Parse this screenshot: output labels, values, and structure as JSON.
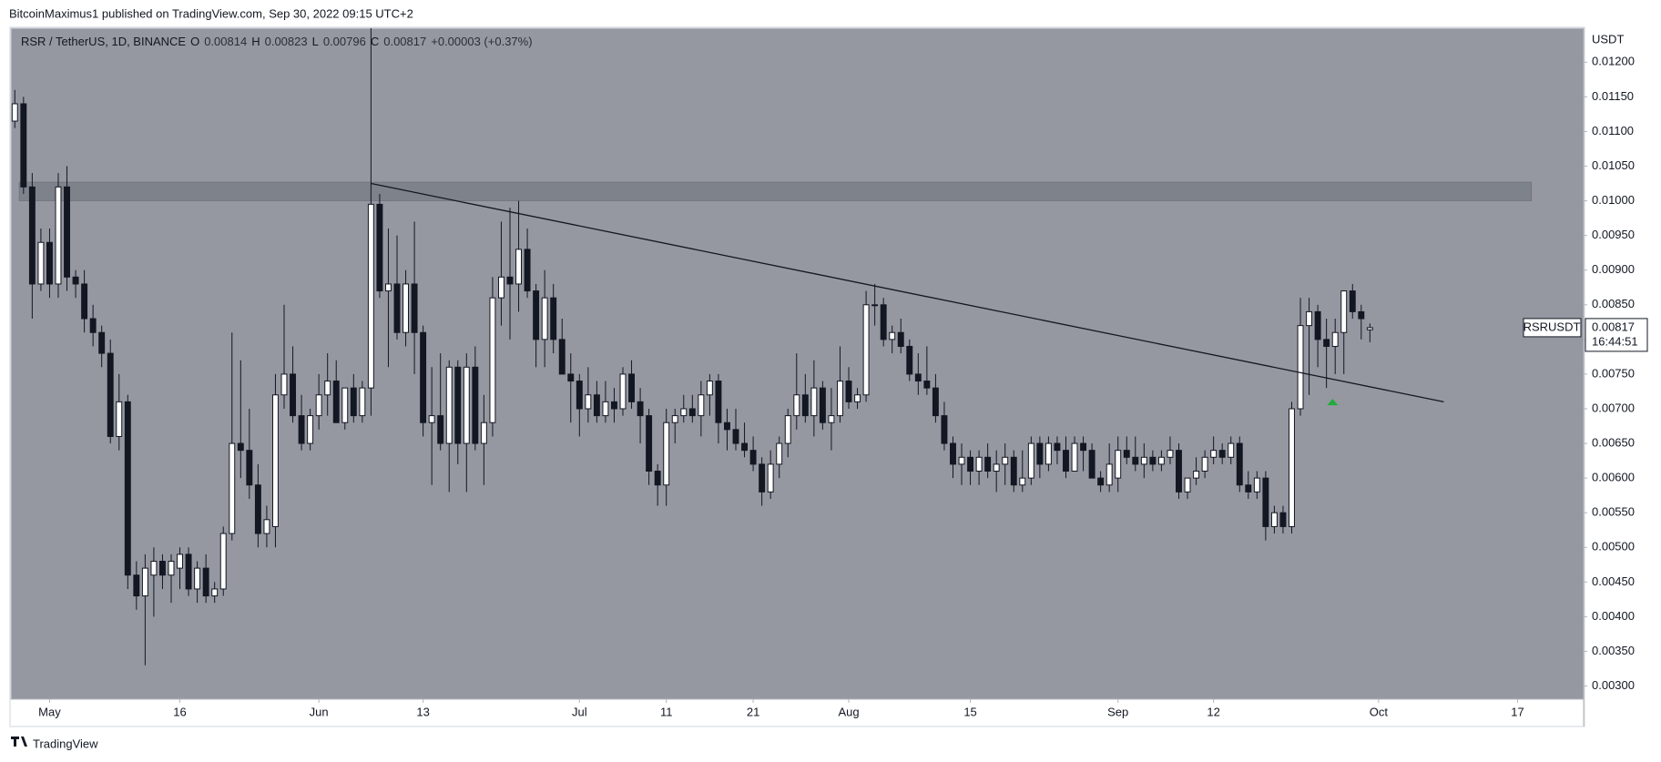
{
  "header": "BitcoinMaximus1 published on TradingView.com, Sep 30, 2022 09:15 UTC+2",
  "footer": "TradingView",
  "chart_data": {
    "type": "candlestick",
    "legend": {
      "title": "RSR / TetherUS, 1D, BINANCE",
      "fields": [
        {
          "key": "O",
          "value": 0.00814
        },
        {
          "key": "H",
          "value": 0.00823
        },
        {
          "key": "L",
          "value": 0.00796
        },
        {
          "key": "C",
          "value": 0.00817
        }
      ],
      "change": "+0.00003 (+0.37%)"
    },
    "y_axis_label": "USDT",
    "open": [
      0.01115,
      0.0114,
      0.0102,
      0.0088,
      0.0094,
      0.0088,
      0.0102,
      0.0089,
      0.0088,
      0.0083,
      0.0081,
      0.0078,
      0.0066,
      0.0071,
      0.0046,
      0.0043,
      0.0046,
      0.0048,
      0.0046,
      0.0047,
      0.0049,
      0.0044,
      0.0047,
      0.0043,
      0.0044,
      0.0052,
      0.0065,
      0.0064,
      0.0059,
      0.0052,
      0.0053,
      0.0072,
      0.0075,
      0.0069,
      0.0065,
      0.0069,
      0.0072,
      0.0074,
      0.0068,
      0.0073,
      0.0069,
      0.0073,
      0.00995,
      0.0087,
      0.0088,
      0.0081,
      0.0088,
      0.0081,
      0.0068,
      0.0069,
      0.0065,
      0.0076,
      0.0065,
      0.0076,
      0.0065,
      0.0068,
      0.0086,
      0.0089,
      0.0088,
      0.0093,
      0.0087,
      0.008,
      0.0086,
      0.008,
      0.0075,
      0.0074,
      0.007,
      0.0072,
      0.0069,
      0.0071,
      0.007,
      0.0075,
      0.0071,
      0.0069,
      0.0061,
      0.0059,
      0.0068,
      0.0069,
      0.007,
      0.0069,
      0.0072,
      0.0074,
      0.0068,
      0.0067,
      0.0065,
      0.0064,
      0.0062,
      0.0058,
      0.0062,
      0.0065,
      0.0069,
      0.0072,
      0.0069,
      0.0073,
      0.0068,
      0.0069,
      0.0074,
      0.0071,
      0.0072,
      0.0085,
      0.0085,
      0.008,
      0.0081,
      0.0079,
      0.0075,
      0.0074,
      0.0073,
      0.0069,
      0.0065,
      0.0062,
      0.0063,
      0.0061,
      0.0063,
      0.0061,
      0.0062,
      0.0063,
      0.0059,
      0.006,
      0.0065,
      0.0062,
      0.0065,
      0.0064,
      0.0061,
      0.0065,
      0.0064,
      0.006,
      0.0059,
      0.006,
      0.0064,
      0.0063,
      0.0062,
      0.0063,
      0.0062,
      0.0063,
      0.0064,
      0.0058,
      0.006,
      0.0061,
      0.0063,
      0.0064,
      0.0063,
      0.0065,
      0.0059,
      0.0058,
      0.006,
      0.0053,
      0.0055,
      0.0053,
      0.007,
      0.0082,
      0.0084,
      0.008,
      0.0079,
      0.0081,
      0.0087,
      0.0084,
      0.00814
    ],
    "high": [
      0.0116,
      0.0115,
      0.0104,
      0.0096,
      0.0096,
      0.0104,
      0.0105,
      0.009,
      0.009,
      0.0085,
      0.0082,
      0.008,
      0.0075,
      0.0072,
      0.0048,
      0.0049,
      0.005,
      0.0049,
      0.0049,
      0.005,
      0.005,
      0.0048,
      0.0049,
      0.0045,
      0.0053,
      0.0081,
      0.0077,
      0.007,
      0.0062,
      0.0056,
      0.0075,
      0.0085,
      0.0079,
      0.0072,
      0.007,
      0.0075,
      0.0078,
      0.0077,
      0.0073,
      0.0075,
      0.0074,
      0.013,
      0.0101,
      0.0096,
      0.0095,
      0.009,
      0.0097,
      0.0082,
      0.0076,
      0.0078,
      0.0077,
      0.0077,
      0.0078,
      0.0079,
      0.0072,
      0.0089,
      0.0097,
      0.0099,
      0.01,
      0.0096,
      0.0088,
      0.009,
      0.0088,
      0.0083,
      0.0078,
      0.0075,
      0.0076,
      0.0074,
      0.0074,
      0.0073,
      0.0076,
      0.0077,
      0.0073,
      0.007,
      0.0062,
      0.007,
      0.007,
      0.0072,
      0.0072,
      0.0074,
      0.0075,
      0.0075,
      0.007,
      0.007,
      0.0068,
      0.0066,
      0.0063,
      0.0064,
      0.0066,
      0.007,
      0.0078,
      0.0075,
      0.0077,
      0.0074,
      0.0073,
      0.0079,
      0.0076,
      0.0073,
      0.0087,
      0.0088,
      0.0086,
      0.0082,
      0.0083,
      0.008,
      0.0078,
      0.0079,
      0.0075,
      0.0071,
      0.0066,
      0.0065,
      0.0064,
      0.0064,
      0.0065,
      0.0064,
      0.0065,
      0.0064,
      0.0064,
      0.0066,
      0.0066,
      0.0066,
      0.0066,
      0.0066,
      0.0066,
      0.0066,
      0.0065,
      0.0061,
      0.0065,
      0.0066,
      0.0066,
      0.0066,
      0.0065,
      0.0064,
      0.0064,
      0.0066,
      0.0065,
      0.006,
      0.0063,
      0.0064,
      0.0066,
      0.0065,
      0.0066,
      0.0066,
      0.0061,
      0.0061,
      0.0061,
      0.0056,
      0.0056,
      0.0071,
      0.0086,
      0.0086,
      0.0085,
      0.0083,
      0.0083,
      0.0087,
      0.0088,
      0.0085,
      0.00823
    ],
    "low": [
      0.01105,
      0.0101,
      0.0083,
      0.0087,
      0.0086,
      0.0086,
      0.0087,
      0.0086,
      0.0081,
      0.0079,
      0.0076,
      0.0065,
      0.0064,
      0.0044,
      0.0041,
      0.0033,
      0.004,
      0.0044,
      0.0042,
      0.0044,
      0.0043,
      0.0042,
      0.0042,
      0.0042,
      0.0043,
      0.0051,
      0.006,
      0.0057,
      0.005,
      0.005,
      0.005,
      0.007,
      0.0068,
      0.0064,
      0.0064,
      0.0067,
      0.0069,
      0.0068,
      0.0067,
      0.0068,
      0.0068,
      0.0069,
      0.0086,
      0.0076,
      0.008,
      0.0079,
      0.0075,
      0.0066,
      0.0059,
      0.0064,
      0.0058,
      0.0062,
      0.0058,
      0.0064,
      0.0059,
      0.0066,
      0.0082,
      0.008,
      0.0084,
      0.0086,
      0.0076,
      0.0076,
      0.0078,
      0.0075,
      0.0068,
      0.0066,
      0.0068,
      0.0068,
      0.0068,
      0.0068,
      0.0069,
      0.007,
      0.0065,
      0.0059,
      0.0056,
      0.0056,
      0.0065,
      0.0068,
      0.0068,
      0.0066,
      0.0069,
      0.0065,
      0.0064,
      0.0064,
      0.0063,
      0.0061,
      0.0056,
      0.0057,
      0.006,
      0.0063,
      0.0067,
      0.0068,
      0.0066,
      0.0067,
      0.0064,
      0.0068,
      0.007,
      0.007,
      0.0071,
      0.0082,
      0.0079,
      0.0078,
      0.0078,
      0.0074,
      0.0072,
      0.0072,
      0.0068,
      0.0064,
      0.006,
      0.0059,
      0.0059,
      0.0059,
      0.006,
      0.0058,
      0.0059,
      0.0058,
      0.0058,
      0.0059,
      0.006,
      0.0061,
      0.0062,
      0.006,
      0.0061,
      0.0061,
      0.006,
      0.0058,
      0.0058,
      0.0058,
      0.0062,
      0.0061,
      0.006,
      0.0061,
      0.0061,
      0.0062,
      0.0057,
      0.0057,
      0.0059,
      0.006,
      0.0062,
      0.0062,
      0.0062,
      0.0058,
      0.0057,
      0.0057,
      0.0051,
      0.0052,
      0.0052,
      0.0052,
      0.0069,
      0.0072,
      0.0076,
      0.0073,
      0.0075,
      0.0075,
      0.0083,
      0.008,
      0.00796
    ],
    "close": [
      0.0114,
      0.0102,
      0.0088,
      0.0094,
      0.0088,
      0.0102,
      0.0089,
      0.0088,
      0.0083,
      0.0081,
      0.0078,
      0.0066,
      0.0071,
      0.0046,
      0.0043,
      0.0047,
      0.0048,
      0.0046,
      0.0048,
      0.0049,
      0.0044,
      0.0047,
      0.0043,
      0.0044,
      0.0052,
      0.0065,
      0.0064,
      0.0059,
      0.0052,
      0.0054,
      0.0072,
      0.0075,
      0.0069,
      0.0065,
      0.0069,
      0.0072,
      0.0074,
      0.0068,
      0.0073,
      0.0069,
      0.0073,
      0.00995,
      0.0087,
      0.0088,
      0.0081,
      0.0088,
      0.0081,
      0.0068,
      0.0069,
      0.0065,
      0.0076,
      0.0065,
      0.0076,
      0.0065,
      0.0068,
      0.0086,
      0.0089,
      0.0088,
      0.0093,
      0.0087,
      0.008,
      0.0086,
      0.008,
      0.0075,
      0.0074,
      0.007,
      0.0072,
      0.0069,
      0.0071,
      0.007,
      0.0075,
      0.0071,
      0.0069,
      0.0061,
      0.0059,
      0.0068,
      0.0069,
      0.007,
      0.0069,
      0.0072,
      0.0074,
      0.0068,
      0.0067,
      0.0065,
      0.0064,
      0.0062,
      0.0058,
      0.0062,
      0.0065,
      0.0069,
      0.0072,
      0.0069,
      0.0073,
      0.0068,
      0.0069,
      0.0074,
      0.0071,
      0.0072,
      0.0085,
      0.0085,
      0.008,
      0.0081,
      0.0079,
      0.0075,
      0.0074,
      0.0073,
      0.0069,
      0.0065,
      0.0062,
      0.0063,
      0.0061,
      0.0063,
      0.0061,
      0.0062,
      0.0063,
      0.0059,
      0.006,
      0.0065,
      0.0062,
      0.0065,
      0.0064,
      0.0061,
      0.0065,
      0.0064,
      0.006,
      0.0059,
      0.0062,
      0.0064,
      0.0063,
      0.0062,
      0.0063,
      0.0062,
      0.0063,
      0.0064,
      0.0058,
      0.006,
      0.0061,
      0.0063,
      0.0064,
      0.0063,
      0.0065,
      0.0059,
      0.0058,
      0.006,
      0.0053,
      0.0055,
      0.0053,
      0.007,
      0.0082,
      0.0084,
      0.008,
      0.0079,
      0.0081,
      0.0087,
      0.0084,
      0.0083,
      0.00817
    ],
    "up_color": "#ffffff",
    "down_color": "#131722",
    "background": "#9598a1",
    "xlim": [
      -0.45,
      180.6
    ],
    "ylim": [
      0.00281,
      0.01249
    ],
    "xticks": [
      {
        "value": 4,
        "label": "May"
      },
      {
        "value": 19,
        "label": "16"
      },
      {
        "value": 35,
        "label": "Jun"
      },
      {
        "value": 47,
        "label": "13"
      },
      {
        "value": 65,
        "label": "Jul"
      },
      {
        "value": 75,
        "label": "11"
      },
      {
        "value": 85,
        "label": "21"
      },
      {
        "value": 96,
        "label": "Aug"
      },
      {
        "value": 110,
        "label": "15"
      },
      {
        "value": 127,
        "label": "Sep"
      },
      {
        "value": 138,
        "label": "12"
      },
      {
        "value": 157,
        "label": "Oct"
      },
      {
        "value": 173,
        "label": "17"
      }
    ],
    "yticks": [
      {
        "value": 0.003,
        "label": "0.00300"
      },
      {
        "value": 0.0035,
        "label": "0.00350"
      },
      {
        "value": 0.004,
        "label": "0.00400"
      },
      {
        "value": 0.0045,
        "label": "0.00450"
      },
      {
        "value": 0.005,
        "label": "0.00500"
      },
      {
        "value": 0.0055,
        "label": "0.00550"
      },
      {
        "value": 0.006,
        "label": "0.00600"
      },
      {
        "value": 0.0065,
        "label": "0.00650"
      },
      {
        "value": 0.007,
        "label": "0.00700"
      },
      {
        "value": 0.0075,
        "label": "0.00750"
      },
      {
        "value": 0.008,
        "label": "0.00800"
      },
      {
        "value": 0.0085,
        "label": "0.00850"
      },
      {
        "value": 0.009,
        "label": "0.00900"
      },
      {
        "value": 0.0095,
        "label": "0.00950"
      },
      {
        "value": 0.01,
        "label": "0.01000"
      },
      {
        "value": 0.0105,
        "label": "0.01050"
      },
      {
        "value": 0.011,
        "label": "0.01100"
      },
      {
        "value": 0.0115,
        "label": "0.01150"
      },
      {
        "value": 0.012,
        "label": "0.01200"
      }
    ],
    "zone": {
      "x": [
        0.5,
        174.6
      ],
      "y": [
        0.01,
        0.01027
      ],
      "color": "#7e828b"
    },
    "trendline": {
      "x": [
        41,
        164.5
      ],
      "y": [
        0.01025,
        0.0071
      ]
    },
    "arrow": {
      "x": 151.7,
      "y": 0.00709,
      "color": "#22ab3a"
    },
    "last_price": {
      "symbol": "RSRUSDT",
      "value": 0.00817,
      "countdown": "16:44:51"
    }
  }
}
